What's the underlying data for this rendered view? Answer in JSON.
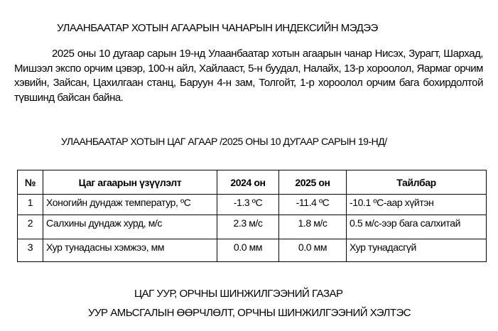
{
  "title": "УЛААНБААТАР ХОТЫН АГААРЫН ЧАНАРЫН ИНДЕКСИЙН МЭДЭЭ",
  "paragraph": "2025 оны 10 дугаар сарын 19-нд Улаанбаатар хотын агаарын чанар Нисэх, Зурагт, Шархад, Мишээл экспо орчим цэвэр, 100-н айл, Хайлааст, 5-н буудал, Налайх, 13-р хороолол, Яармаг орчим хэвийн, Зайсан, Цахилгаан станц, Баруун 4-н зам, Толгойт, 1-р хороолол орчим бага бохирдолтой түвшинд байсан байна.",
  "weather_title": "УЛААНБААТАР ХОТЫН ЦАГ АГААР /2025 ОНЫ 10 ДУГААР САРЫН 19-НД/",
  "table": {
    "headers": [
      "№",
      "Цаг агаарын үзүүлэлт",
      "2024 он",
      "2025 он",
      "Тайлбар"
    ],
    "rows": [
      [
        "1",
        "Хоногийн дундаж температур, ºС",
        "-1.3 ºС",
        "-11.4 ºС",
        "-10.1 ºС-аар хүйтэн"
      ],
      [
        "2",
        "Салхины дундаж хурд, м/с",
        "2.3 м/с",
        "1.8 м/с",
        "0.5 м/с-ээр бага салхитай"
      ],
      [
        "3",
        "Хур тунадасны хэмжээ, мм",
        "0.0 мм",
        "0.0 мм",
        "Хур тунадасгүй"
      ]
    ]
  },
  "footer": {
    "line1": "ЦАГ УУР, ОРЧНЫ ШИНЖИЛГЭЭНИЙ ГАЗАР",
    "line2": "УУР АМЬСГАЛЫН ӨӨРЧЛӨЛТ, ОРЧНЫ ШИНЖИЛГЭЭНИЙ ХЭЛТЭС"
  }
}
